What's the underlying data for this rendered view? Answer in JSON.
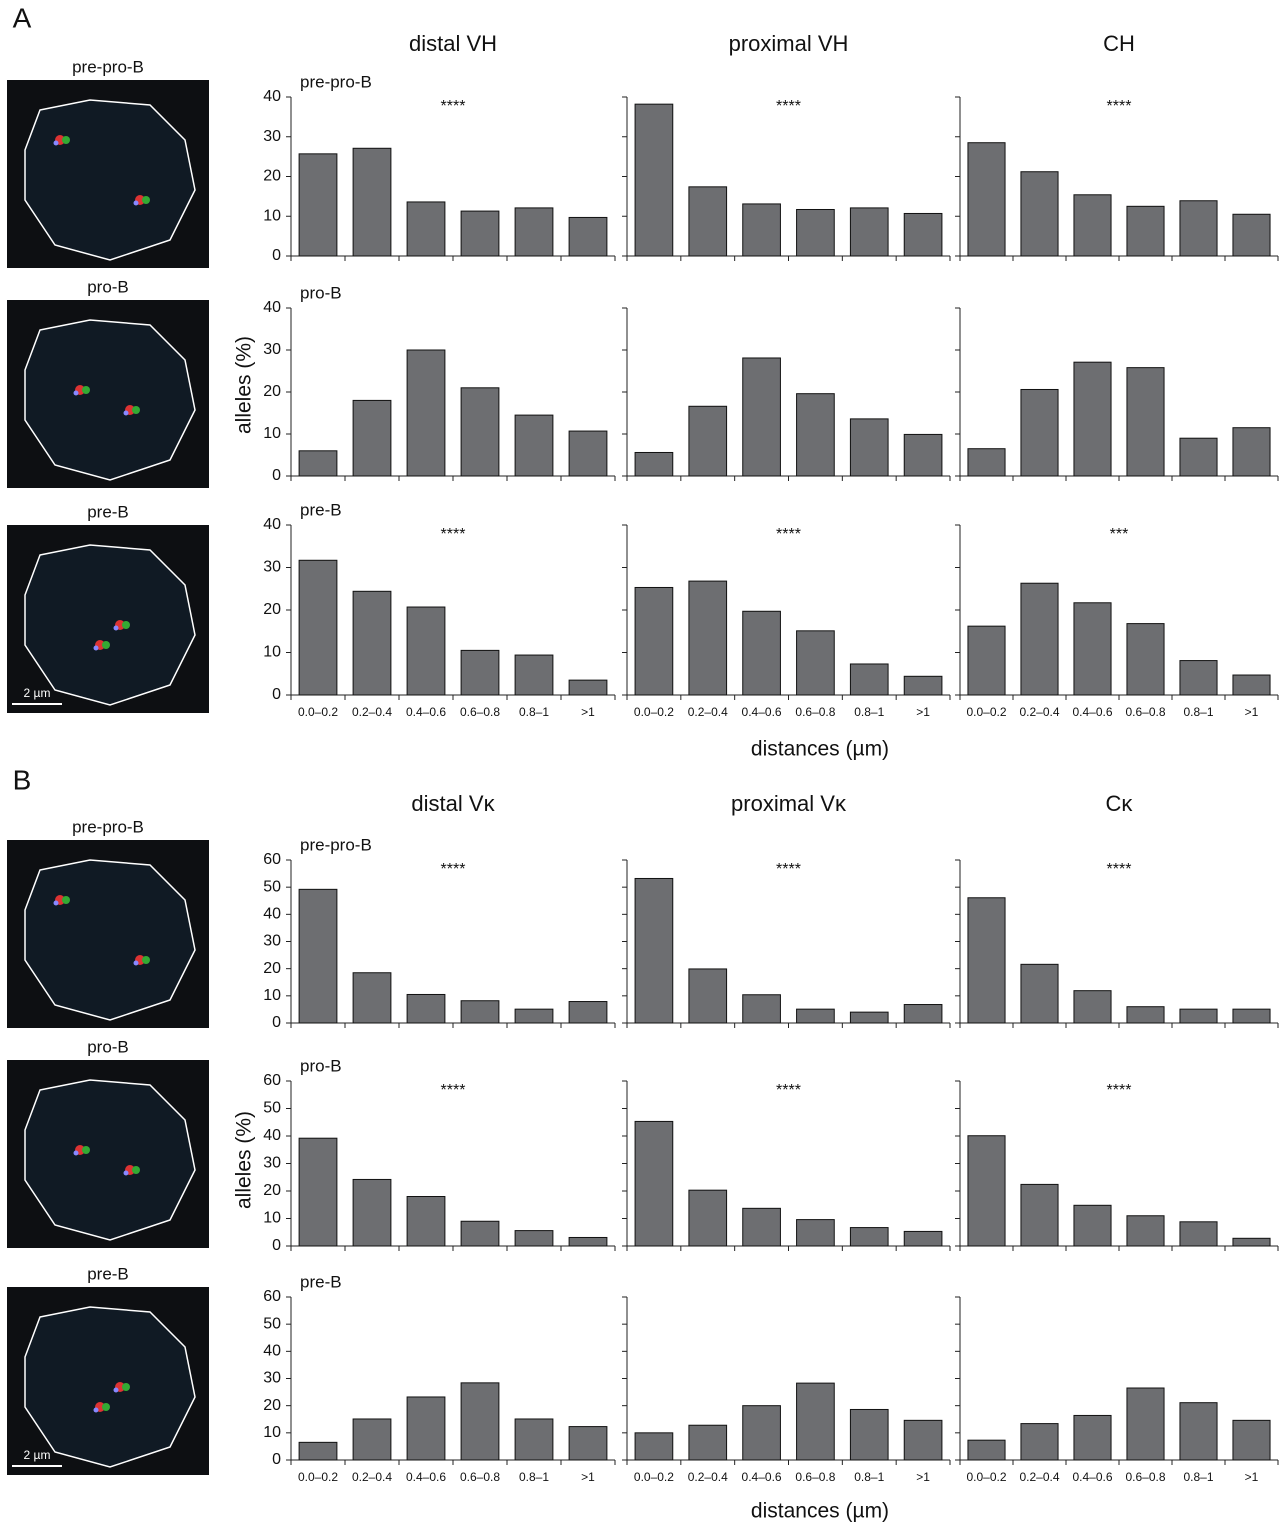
{
  "figure": {
    "panels": [
      {
        "label": "A",
        "ylabel": "alleles (%)",
        "xlabel": "distances (µm)",
        "scale_bar": "2 µm",
        "images": [
          {
            "label": "pre-pro-B"
          },
          {
            "label": "pro-B"
          },
          {
            "label": "pre-B"
          }
        ]
      },
      {
        "label": "B",
        "ylabel": "alleles (%)",
        "xlabel": "distances (µm)",
        "scale_bar": "2 µm",
        "images": [
          {
            "label": "pre-pro-B"
          },
          {
            "label": "pro-B"
          },
          {
            "label": "pre-B"
          }
        ]
      }
    ]
  },
  "chart_data": [
    {
      "type": "bar",
      "title": "distal VH",
      "subtitle": "pre-pro-B",
      "annotation": "****",
      "categories": [
        null,
        null,
        null,
        null,
        null,
        null
      ],
      "values": [
        25.7,
        27.1,
        13.6,
        11.3,
        12.1,
        9.7
      ],
      "color": "#6d6e71",
      "ylim": [
        0,
        40
      ],
      "yticks": [
        0,
        10,
        20,
        30,
        40
      ],
      "show_ytick_labels": true
    },
    {
      "type": "bar",
      "title": "proximal VH",
      "annotation": "****",
      "categories": [
        null,
        null,
        null,
        null,
        null,
        null
      ],
      "values": [
        38.2,
        17.4,
        13.1,
        11.7,
        12.1,
        10.7
      ],
      "color": "#6d6e71",
      "ylim": [
        0,
        40
      ],
      "yticks": [
        0,
        10,
        20,
        30,
        40
      ],
      "show_ytick_labels": false
    },
    {
      "type": "bar",
      "title": "CH",
      "annotation": "****",
      "categories": [
        null,
        null,
        null,
        null,
        null,
        null
      ],
      "values": [
        28.5,
        21.2,
        15.4,
        12.5,
        13.9,
        10.5
      ],
      "color": "#6d6e71",
      "ylim": [
        0,
        40
      ],
      "yticks": [
        0,
        10,
        20,
        30,
        40
      ],
      "show_ytick_labels": false
    },
    {
      "type": "bar",
      "subtitle": "pro-B",
      "categories": [
        null,
        null,
        null,
        null,
        null,
        null
      ],
      "values": [
        6,
        18,
        30,
        21,
        14.5,
        10.7
      ],
      "color": "#6d6e71",
      "ylim": [
        0,
        40
      ],
      "yticks": [
        0,
        10,
        20,
        30,
        40
      ],
      "show_ytick_labels": true
    },
    {
      "type": "bar",
      "categories": [
        null,
        null,
        null,
        null,
        null,
        null
      ],
      "values": [
        5.6,
        16.6,
        28.1,
        19.6,
        13.6,
        9.9
      ],
      "color": "#6d6e71",
      "ylim": [
        0,
        40
      ],
      "yticks": [
        0,
        10,
        20,
        30,
        40
      ],
      "show_ytick_labels": false
    },
    {
      "type": "bar",
      "categories": [
        null,
        null,
        null,
        null,
        null,
        null
      ],
      "values": [
        6.5,
        20.6,
        27.1,
        25.8,
        9.0,
        11.5
      ],
      "color": "#6d6e71",
      "ylim": [
        0,
        40
      ],
      "yticks": [
        0,
        10,
        20,
        30,
        40
      ],
      "show_ytick_labels": false
    },
    {
      "type": "bar",
      "subtitle": "pre-B",
      "annotation": "****",
      "categories": [
        "0.0–0.2",
        "0.2–0.4",
        "0.4–0.6",
        "0.6–0.8",
        "0.8–1",
        ">1"
      ],
      "values": [
        31.7,
        24.4,
        20.7,
        10.5,
        9.4,
        3.5
      ],
      "color": "#6d6e71",
      "ylim": [
        0,
        40
      ],
      "yticks": [
        0,
        10,
        20,
        30,
        40
      ],
      "show_ytick_labels": true
    },
    {
      "type": "bar",
      "annotation": "****",
      "categories": [
        "0.0–0.2",
        "0.2–0.4",
        "0.4–0.6",
        "0.6–0.8",
        "0.8–1",
        ">1"
      ],
      "values": [
        25.3,
        26.8,
        19.7,
        15.1,
        7.3,
        4.4
      ],
      "color": "#6d6e71",
      "ylim": [
        0,
        40
      ],
      "yticks": [
        0,
        10,
        20,
        30,
        40
      ],
      "show_ytick_labels": false
    },
    {
      "type": "bar",
      "annotation": "***",
      "categories": [
        "0.0–0.2",
        "0.2–0.4",
        "0.4–0.6",
        "0.6–0.8",
        "0.8–1",
        ">1"
      ],
      "values": [
        16.2,
        26.3,
        21.7,
        16.8,
        8.1,
        4.7
      ],
      "color": "#6d6e71",
      "ylim": [
        0,
        40
      ],
      "yticks": [
        0,
        10,
        20,
        30,
        40
      ],
      "show_ytick_labels": false
    },
    {
      "type": "bar",
      "title": "distal Vκ",
      "subtitle": "pre-pro-B",
      "annotation": "****",
      "categories": [
        null,
        null,
        null,
        null,
        null,
        null
      ],
      "values": [
        49.2,
        18.5,
        10.5,
        8.2,
        5.1,
        7.9
      ],
      "color": "#6d6e71",
      "ylim": [
        0,
        60
      ],
      "yticks": [
        0,
        10,
        20,
        30,
        40,
        50,
        60
      ],
      "show_ytick_labels": true
    },
    {
      "type": "bar",
      "title": "proximal Vκ",
      "annotation": "****",
      "categories": [
        null,
        null,
        null,
        null,
        null,
        null
      ],
      "values": [
        53.2,
        19.9,
        10.4,
        5.1,
        4.0,
        6.8
      ],
      "color": "#6d6e71",
      "ylim": [
        0,
        60
      ],
      "yticks": [
        0,
        10,
        20,
        30,
        40,
        50,
        60
      ],
      "show_ytick_labels": false
    },
    {
      "type": "bar",
      "title": "Cκ",
      "annotation": "****",
      "categories": [
        null,
        null,
        null,
        null,
        null,
        null
      ],
      "values": [
        46.1,
        21.6,
        11.9,
        6.0,
        5.1,
        5.1
      ],
      "color": "#6d6e71",
      "ylim": [
        0,
        60
      ],
      "yticks": [
        0,
        10,
        20,
        30,
        40,
        50,
        60
      ],
      "show_ytick_labels": false
    },
    {
      "type": "bar",
      "subtitle": "pro-B",
      "annotation": "****",
      "categories": [
        null,
        null,
        null,
        null,
        null,
        null
      ],
      "values": [
        39.2,
        24.2,
        18.0,
        9.0,
        5.6,
        3.1
      ],
      "color": "#6d6e71",
      "ylim": [
        0,
        60
      ],
      "yticks": [
        0,
        10,
        20,
        30,
        40,
        50,
        60
      ],
      "show_ytick_labels": true
    },
    {
      "type": "bar",
      "annotation": "****",
      "categories": [
        null,
        null,
        null,
        null,
        null,
        null
      ],
      "values": [
        45.3,
        20.3,
        13.7,
        9.6,
        6.7,
        5.3
      ],
      "color": "#6d6e71",
      "ylim": [
        0,
        60
      ],
      "yticks": [
        0,
        10,
        20,
        30,
        40,
        50,
        60
      ],
      "show_ytick_labels": false
    },
    {
      "type": "bar",
      "annotation": "****",
      "categories": [
        null,
        null,
        null,
        null,
        null,
        null
      ],
      "values": [
        40.1,
        22.4,
        14.8,
        11.0,
        8.8,
        2.8
      ],
      "color": "#6d6e71",
      "ylim": [
        0,
        60
      ],
      "yticks": [
        0,
        10,
        20,
        30,
        40,
        50,
        60
      ],
      "show_ytick_labels": false
    },
    {
      "type": "bar",
      "subtitle": "pre-B",
      "categories": [
        "0.0–0.2",
        "0.2–0.4",
        "0.4–0.6",
        "0.6–0.8",
        "0.8–1",
        ">1"
      ],
      "values": [
        6.5,
        15.1,
        23.2,
        28.4,
        15.1,
        12.3
      ],
      "color": "#6d6e71",
      "ylim": [
        0,
        60
      ],
      "yticks": [
        0,
        10,
        20,
        30,
        40,
        50,
        60
      ],
      "show_ytick_labels": true
    },
    {
      "type": "bar",
      "categories": [
        "0.0–0.2",
        "0.2–0.4",
        "0.4–0.6",
        "0.6–0.8",
        "0.8–1",
        ">1"
      ],
      "values": [
        10.0,
        12.8,
        20.0,
        28.3,
        18.6,
        14.6
      ],
      "color": "#6d6e71",
      "ylim": [
        0,
        60
      ],
      "yticks": [
        0,
        10,
        20,
        30,
        40,
        50,
        60
      ],
      "show_ytick_labels": false
    },
    {
      "type": "bar",
      "categories": [
        "0.0–0.2",
        "0.2–0.4",
        "0.4–0.6",
        "0.6–0.8",
        "0.8–1",
        ">1"
      ],
      "values": [
        7.3,
        13.4,
        16.4,
        26.5,
        21.1,
        14.6
      ],
      "color": "#6d6e71",
      "ylim": [
        0,
        60
      ],
      "yticks": [
        0,
        10,
        20,
        30,
        40,
        50,
        60
      ],
      "show_ytick_labels": false
    }
  ]
}
